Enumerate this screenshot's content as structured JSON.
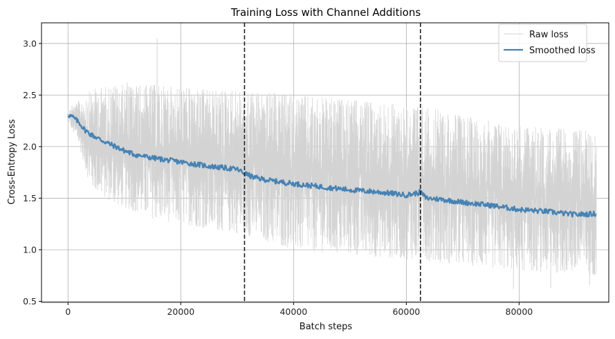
{
  "chart_data": {
    "type": "line",
    "title": "Training Loss with Channel Additions",
    "xlabel": "Batch steps",
    "ylabel": "Cross-Entropy Loss",
    "xlim": [
      -4700,
      95900
    ],
    "ylim": [
      0.49,
      3.2
    ],
    "xticks": [
      0,
      20000,
      40000,
      60000,
      80000
    ],
    "yticks": [
      0.5,
      1.0,
      1.5,
      2.0,
      2.5,
      3.0
    ],
    "ytick_labels": [
      "0.5",
      "1.0",
      "1.5",
      "2.0",
      "2.5",
      "3.0"
    ],
    "grid": true,
    "legend_position": "top-right",
    "vlines": [
      31300,
      62500
    ],
    "vline_style": "dashed",
    "series": [
      {
        "name": "Raw loss",
        "color": "#d3d3d3",
        "x_range": [
          0,
          93700
        ],
        "band_upper": {
          "x": [
            0,
            2000,
            4000,
            8000,
            15000,
            25000,
            31000,
            40000,
            50000,
            62000,
            70000,
            80000,
            93700
          ],
          "y": [
            2.35,
            2.45,
            2.55,
            2.6,
            2.6,
            2.55,
            2.55,
            2.5,
            2.45,
            2.4,
            2.3,
            2.2,
            2.15
          ]
        },
        "band_lower": {
          "x": [
            0,
            2000,
            4000,
            8000,
            15000,
            25000,
            31000,
            40000,
            50000,
            62000,
            70000,
            80000,
            93700
          ],
          "y": [
            2.25,
            2.0,
            1.6,
            1.45,
            1.3,
            1.2,
            1.15,
            1.0,
            0.95,
            0.9,
            0.85,
            0.8,
            0.75
          ]
        },
        "spikes": [
          {
            "x": 15800,
            "y": 3.05
          },
          {
            "x": 10500,
            "y": 2.62
          },
          {
            "x": 700,
            "y": 2.4
          },
          {
            "x": 79000,
            "y": 0.62
          },
          {
            "x": 85600,
            "y": 0.63
          },
          {
            "x": 92500,
            "y": 0.66
          }
        ]
      },
      {
        "name": "Smoothed loss",
        "color": "#4682b4",
        "x": [
          0,
          1000,
          2000,
          3000,
          4000,
          6000,
          8000,
          10000,
          12000,
          15000,
          20000,
          25000,
          30000,
          31300,
          33000,
          36000,
          40000,
          45000,
          50000,
          55000,
          60000,
          62000,
          62500,
          63500,
          66000,
          70000,
          75000,
          80000,
          85000,
          90000,
          93700
        ],
        "y": [
          2.31,
          2.28,
          2.23,
          2.16,
          2.12,
          2.06,
          2.01,
          1.96,
          1.92,
          1.89,
          1.85,
          1.81,
          1.78,
          1.74,
          1.7,
          1.67,
          1.64,
          1.61,
          1.58,
          1.56,
          1.53,
          1.55,
          1.56,
          1.5,
          1.49,
          1.46,
          1.43,
          1.39,
          1.37,
          1.34,
          1.35
        ]
      }
    ]
  }
}
